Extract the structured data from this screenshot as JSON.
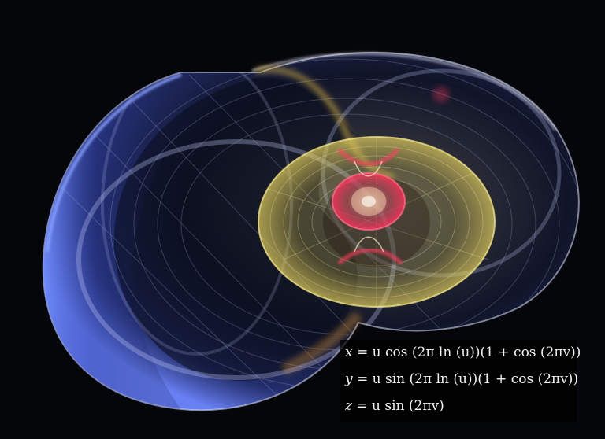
{
  "figure": {
    "subject": "nautilus-shell-parametric-surface",
    "colors": {
      "background": "#05060a",
      "outer_shell_edge": "#5a7cff",
      "outer_shell_light": "#e6e6ff",
      "inner_rings": "#f3e07a",
      "hot_spots": "#ff3a60"
    }
  },
  "equations": [
    {
      "lhs": "x",
      "rhs": "u cos (2π ln (u))(1 + cos (2πv))"
    },
    {
      "lhs": "y",
      "rhs": "u sin (2π ln (u))(1 + cos (2πv))"
    },
    {
      "lhs": "z",
      "rhs": "u sin (2πv)"
    }
  ]
}
